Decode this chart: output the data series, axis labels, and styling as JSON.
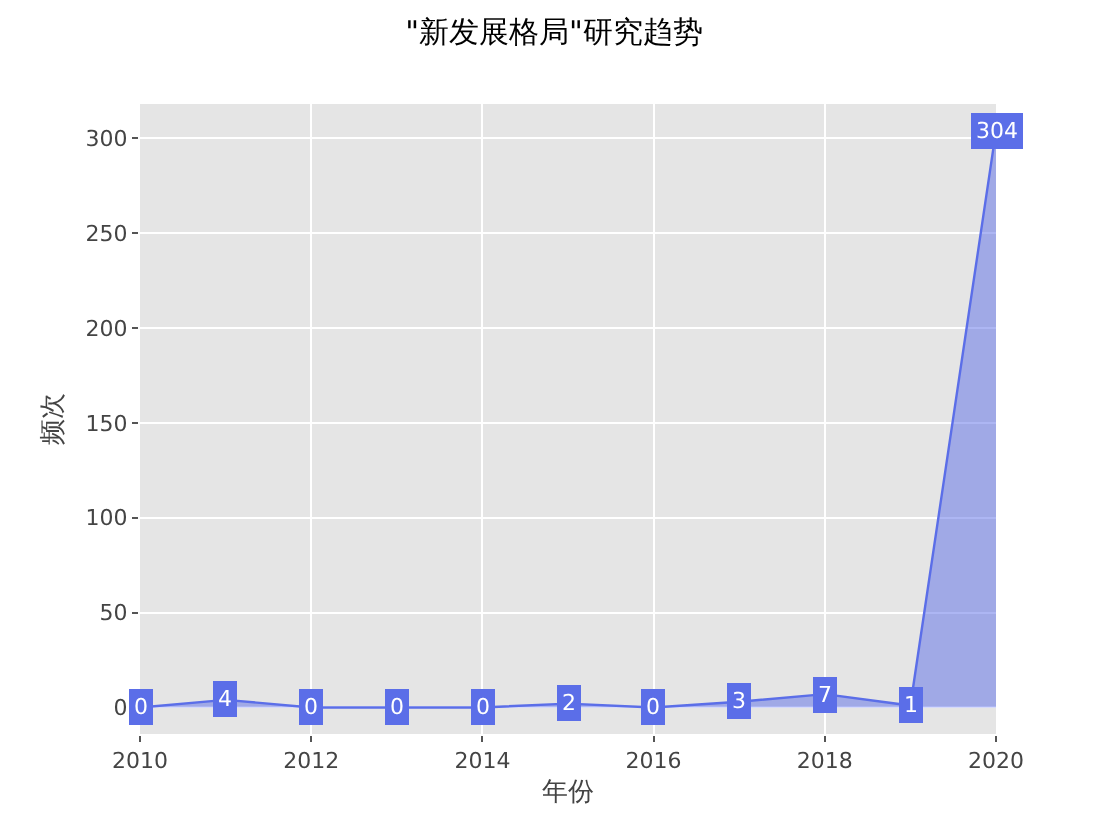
{
  "chart_data": {
    "type": "area",
    "title": "\"新发展格局\"研究趋势",
    "xlabel": "年份",
    "ylabel": "频次",
    "x": [
      2010,
      2011,
      2012,
      2013,
      2014,
      2015,
      2016,
      2017,
      2018,
      2019,
      2020
    ],
    "series": [
      {
        "color": "#5b6ee8",
        "values": [
          0,
          4,
          0,
          0,
          0,
          2,
          0,
          3,
          7,
          1,
          304
        ]
      }
    ],
    "xlim": [
      2010,
      2020
    ],
    "xticks": [
      2010,
      2012,
      2014,
      2016,
      2018,
      2020
    ],
    "ylim": [
      -14,
      318
    ],
    "yticks": [
      0,
      50,
      100,
      150,
      200,
      250,
      300
    ],
    "grid": true,
    "legend": false,
    "data_labels": true
  }
}
